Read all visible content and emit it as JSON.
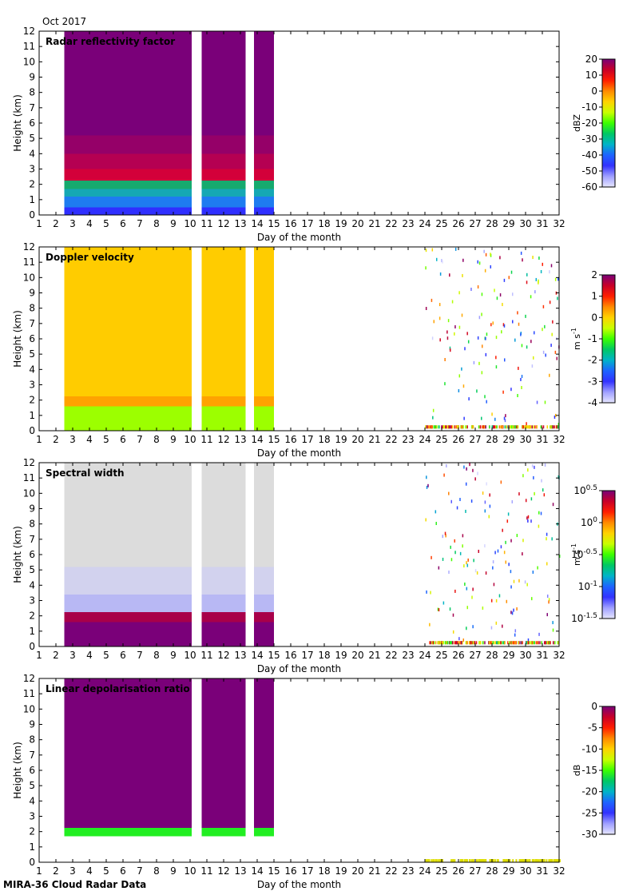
{
  "header": {
    "period": "Oct 2017"
  },
  "footer": {
    "instrument": "MIRA-36 Cloud Radar Data"
  },
  "chart_data": [
    {
      "type": "heatmap",
      "title": "Radar reflectivity factor",
      "xlabel": "Day of the month",
      "ylabel": "Height (km)",
      "xlim": [
        1,
        32
      ],
      "ylim": [
        0,
        12
      ],
      "x_ticks": [
        1,
        2,
        3,
        4,
        5,
        6,
        7,
        8,
        9,
        10,
        11,
        12,
        13,
        14,
        15,
        16,
        17,
        18,
        19,
        20,
        21,
        22,
        23,
        24,
        25,
        26,
        27,
        28,
        29,
        30,
        31,
        32
      ],
      "y_ticks": [
        0,
        1,
        2,
        3,
        4,
        5,
        6,
        7,
        8,
        9,
        10,
        11,
        12
      ],
      "colorbar": {
        "label": "dBZ",
        "ticks": [
          "20",
          "10",
          "0",
          "-10",
          "-20",
          "-30",
          "-40",
          "-50",
          "-60"
        ],
        "range": [
          -60,
          20
        ],
        "scale": "linear"
      },
      "data_periods": [
        {
          "start": 2.5,
          "end": 10.1
        },
        {
          "start": 10.7,
          "end": 13.3
        },
        {
          "start": 13.8,
          "end": 15.0
        }
      ],
      "layers": [
        {
          "from": 0.0,
          "to": 0.5,
          "color": "#2f2fff"
        },
        {
          "from": 0.5,
          "to": 1.2,
          "color": "#1e7cf0"
        },
        {
          "from": 1.2,
          "to": 1.7,
          "color": "#15a8b4"
        },
        {
          "from": 1.7,
          "to": 2.25,
          "color": "#16aa6e"
        },
        {
          "from": 2.25,
          "to": 3.0,
          "color": "#d3003a"
        },
        {
          "from": 3.0,
          "to": 4.0,
          "color": "#b50052"
        },
        {
          "from": 4.0,
          "to": 5.2,
          "color": "#950068"
        },
        {
          "from": 5.2,
          "to": 12.0,
          "color": "#7a0079"
        }
      ],
      "scatter_region": null
    },
    {
      "type": "heatmap",
      "title": "Doppler velocity",
      "xlabel": "Day of the month",
      "ylabel": "Height (km)",
      "xlim": [
        1,
        32
      ],
      "ylim": [
        0,
        12
      ],
      "x_ticks": [
        1,
        2,
        3,
        4,
        5,
        6,
        7,
        8,
        9,
        10,
        11,
        12,
        13,
        14,
        15,
        16,
        17,
        18,
        19,
        20,
        21,
        22,
        23,
        24,
        25,
        26,
        27,
        28,
        29,
        30,
        31,
        32
      ],
      "y_ticks": [
        0,
        1,
        2,
        3,
        4,
        5,
        6,
        7,
        8,
        9,
        10,
        11,
        12
      ],
      "colorbar": {
        "label": "m s-1",
        "ticks": [
          "2",
          "1",
          "0",
          "-1",
          "-2",
          "-3",
          "-4"
        ],
        "range": [
          -4,
          2
        ],
        "scale": "linear"
      },
      "data_periods": [
        {
          "start": 2.5,
          "end": 10.1
        },
        {
          "start": 10.7,
          "end": 13.3
        },
        {
          "start": 13.8,
          "end": 15.0
        }
      ],
      "layers": [
        {
          "from": 0.0,
          "to": 1.6,
          "color": "#9cff00"
        },
        {
          "from": 1.6,
          "to": 2.25,
          "color": "#ffa200"
        },
        {
          "from": 2.25,
          "to": 12.0,
          "color": "#ffcc00"
        }
      ],
      "scatter_region": {
        "start": 24.0,
        "end": 32.0,
        "ymin": 0.2,
        "ymax": 12.0
      }
    },
    {
      "type": "heatmap",
      "title": "Spectral width",
      "xlabel": "Day of the month",
      "ylabel": "Height (km)",
      "xlim": [
        1,
        32
      ],
      "ylim": [
        0,
        12
      ],
      "x_ticks": [
        1,
        2,
        3,
        4,
        5,
        6,
        7,
        8,
        9,
        10,
        11,
        12,
        13,
        14,
        15,
        16,
        17,
        18,
        19,
        20,
        21,
        22,
        23,
        24,
        25,
        26,
        27,
        28,
        29,
        30,
        31,
        32
      ],
      "y_ticks": [
        0,
        1,
        2,
        3,
        4,
        5,
        6,
        7,
        8,
        9,
        10,
        11,
        12
      ],
      "colorbar": {
        "label": "m s-1",
        "ticks": [
          "10^0.5",
          "10^0",
          "10^-0.5",
          "10^-1",
          "10^-1.5"
        ],
        "range": [
          -1.5,
          0.5
        ],
        "scale": "log10"
      },
      "data_periods": [
        {
          "start": 2.5,
          "end": 10.1
        },
        {
          "start": 10.7,
          "end": 13.3
        },
        {
          "start": 13.8,
          "end": 15.0
        }
      ],
      "layers": [
        {
          "from": 0.0,
          "to": 1.6,
          "color": "#7a0079"
        },
        {
          "from": 1.6,
          "to": 2.25,
          "color": "#a8004a"
        },
        {
          "from": 2.25,
          "to": 3.4,
          "color": "#b8b8f4"
        },
        {
          "from": 3.4,
          "to": 5.2,
          "color": "#d2d2ee"
        },
        {
          "from": 5.2,
          "to": 12.0,
          "color": "#dcdcdc"
        }
      ],
      "scatter_region": {
        "start": 24.0,
        "end": 32.0,
        "ymin": 0.2,
        "ymax": 12.0
      }
    },
    {
      "type": "heatmap",
      "title": "Linear depolarisation ratio",
      "xlabel": "Day of the month",
      "ylabel": "Height (km)",
      "xlim": [
        1,
        32
      ],
      "ylim": [
        0,
        12
      ],
      "x_ticks": [
        1,
        2,
        3,
        4,
        5,
        6,
        7,
        8,
        9,
        10,
        11,
        12,
        13,
        14,
        15,
        16,
        17,
        18,
        19,
        20,
        21,
        22,
        23,
        24,
        25,
        26,
        27,
        28,
        29,
        30,
        31,
        32
      ],
      "y_ticks": [
        0,
        1,
        2,
        3,
        4,
        5,
        6,
        7,
        8,
        9,
        10,
        11,
        12
      ],
      "colorbar": {
        "label": "dB",
        "ticks": [
          "0",
          "-5",
          "-10",
          "-15",
          "-20",
          "-25",
          "-30"
        ],
        "range": [
          -30,
          0
        ],
        "scale": "linear"
      },
      "data_periods": [
        {
          "start": 2.5,
          "end": 10.1
        },
        {
          "start": 10.7,
          "end": 13.3
        },
        {
          "start": 13.8,
          "end": 15.0
        }
      ],
      "layers": [
        {
          "from": 1.7,
          "to": 2.25,
          "color": "#22ee22"
        },
        {
          "from": 2.25,
          "to": 12.0,
          "color": "#7a0079"
        }
      ],
      "scatter_region": {
        "start": 24.0,
        "end": 32.0,
        "ymin": 0.0,
        "ymax": 0.2,
        "color": "#dddd00"
      }
    }
  ]
}
